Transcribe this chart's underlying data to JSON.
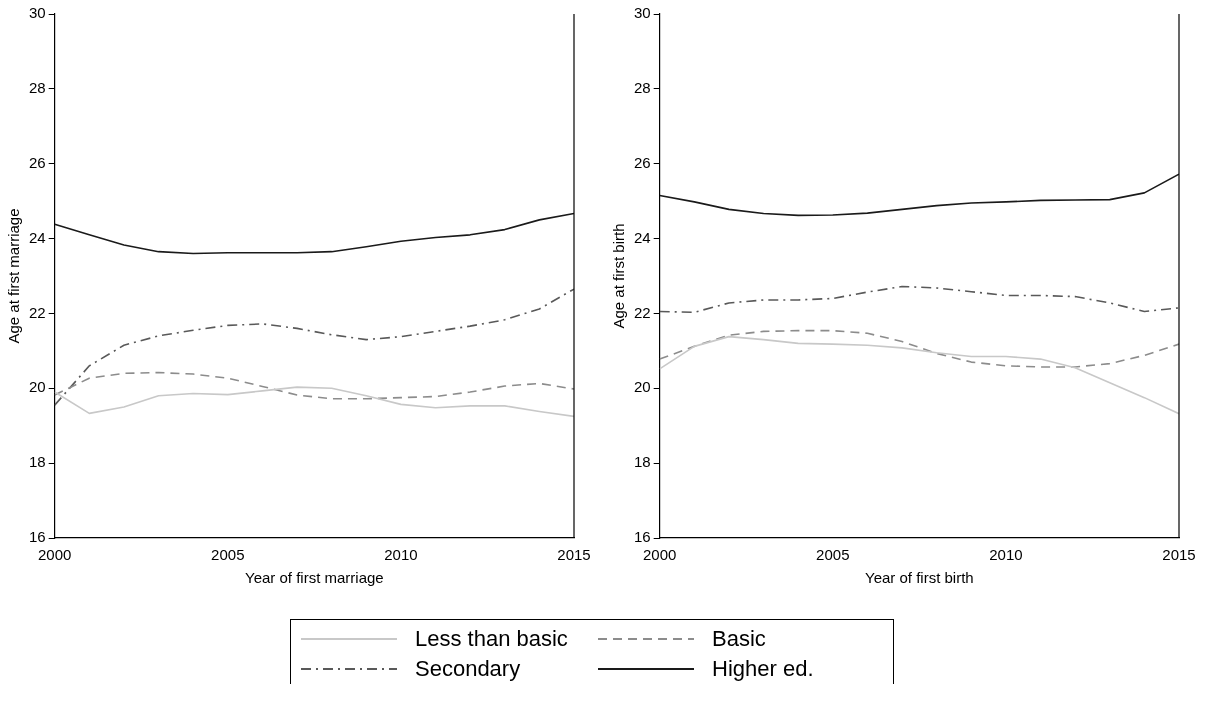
{
  "chart_data": [
    {
      "type": "line",
      "xlabel": "Year of first marriage",
      "ylabel": "Age at first marriage",
      "x": [
        2000,
        2001,
        2002,
        2003,
        2004,
        2005,
        2006,
        2007,
        2008,
        2009,
        2010,
        2011,
        2012,
        2013,
        2014,
        2015
      ],
      "xlim": [
        2000,
        2015
      ],
      "xticks": [
        2000,
        2005,
        2010,
        2015
      ],
      "ylim": [
        16,
        30
      ],
      "yticks": [
        16,
        18,
        20,
        22,
        24,
        26,
        28,
        30
      ],
      "grid": false,
      "legend": "bottom",
      "marker": "none",
      "series": [
        {
          "name": "Less than basic",
          "color": "#c8c8c8",
          "line_style": "solid",
          "values": [
            19.9,
            19.33,
            19.5,
            19.8,
            19.86,
            19.83,
            19.93,
            20.03,
            20.0,
            19.8,
            19.57,
            19.48,
            19.53,
            19.53,
            19.38,
            19.25
          ]
        },
        {
          "name": "Basic",
          "color": "#8c8c8c",
          "line_style": "dashed",
          "values": [
            19.82,
            20.27,
            20.4,
            20.42,
            20.38,
            20.27,
            20.05,
            19.82,
            19.72,
            19.72,
            19.75,
            19.78,
            19.9,
            20.06,
            20.13,
            19.98
          ]
        },
        {
          "name": "Secondary",
          "color": "#595959",
          "line_style": "dashdot",
          "values": [
            19.55,
            20.6,
            21.15,
            21.4,
            21.55,
            21.68,
            21.72,
            21.6,
            21.43,
            21.3,
            21.38,
            21.52,
            21.66,
            21.83,
            22.12,
            22.65
          ]
        },
        {
          "name": "Higher ed.",
          "color": "#1a1a1a",
          "line_style": "solid",
          "values": [
            24.38,
            24.1,
            23.83,
            23.65,
            23.6,
            23.62,
            23.62,
            23.62,
            23.65,
            23.78,
            23.93,
            24.03,
            24.1,
            24.24,
            24.5,
            24.67
          ]
        }
      ]
    },
    {
      "type": "line",
      "xlabel": "Year of first birth",
      "ylabel": "Age at first birth",
      "x": [
        2000,
        2001,
        2002,
        2003,
        2004,
        2005,
        2006,
        2007,
        2008,
        2009,
        2010,
        2011,
        2012,
        2013,
        2014,
        2015
      ],
      "xlim": [
        2000,
        2015
      ],
      "xticks": [
        2000,
        2005,
        2010,
        2015
      ],
      "ylim": [
        16,
        30
      ],
      "yticks": [
        16,
        18,
        20,
        22,
        24,
        26,
        28,
        30
      ],
      "grid": false,
      "marker": "none",
      "series": [
        {
          "name": "Less than basic",
          "color": "#c8c8c8",
          "line_style": "solid",
          "values": [
            20.52,
            21.12,
            21.38,
            21.3,
            21.2,
            21.18,
            21.15,
            21.08,
            20.95,
            20.85,
            20.85,
            20.78,
            20.55,
            20.15,
            19.75,
            19.32
          ]
        },
        {
          "name": "Basic",
          "color": "#8c8c8c",
          "line_style": "dashed",
          "values": [
            20.78,
            21.12,
            21.42,
            21.52,
            21.54,
            21.54,
            21.47,
            21.25,
            20.93,
            20.7,
            20.6,
            20.57,
            20.57,
            20.66,
            20.88,
            21.18
          ]
        },
        {
          "name": "Secondary",
          "color": "#595959",
          "line_style": "dashdot",
          "values": [
            22.05,
            22.03,
            22.28,
            22.36,
            22.36,
            22.4,
            22.57,
            22.72,
            22.68,
            22.58,
            22.48,
            22.48,
            22.45,
            22.28,
            22.05,
            22.15
          ]
        },
        {
          "name": "Higher ed.",
          "color": "#1a1a1a",
          "line_style": "solid",
          "values": [
            25.15,
            24.98,
            24.78,
            24.67,
            24.62,
            24.63,
            24.68,
            24.78,
            24.88,
            24.95,
            24.98,
            25.02,
            25.03,
            25.04,
            25.22,
            25.72
          ]
        }
      ]
    }
  ]
}
